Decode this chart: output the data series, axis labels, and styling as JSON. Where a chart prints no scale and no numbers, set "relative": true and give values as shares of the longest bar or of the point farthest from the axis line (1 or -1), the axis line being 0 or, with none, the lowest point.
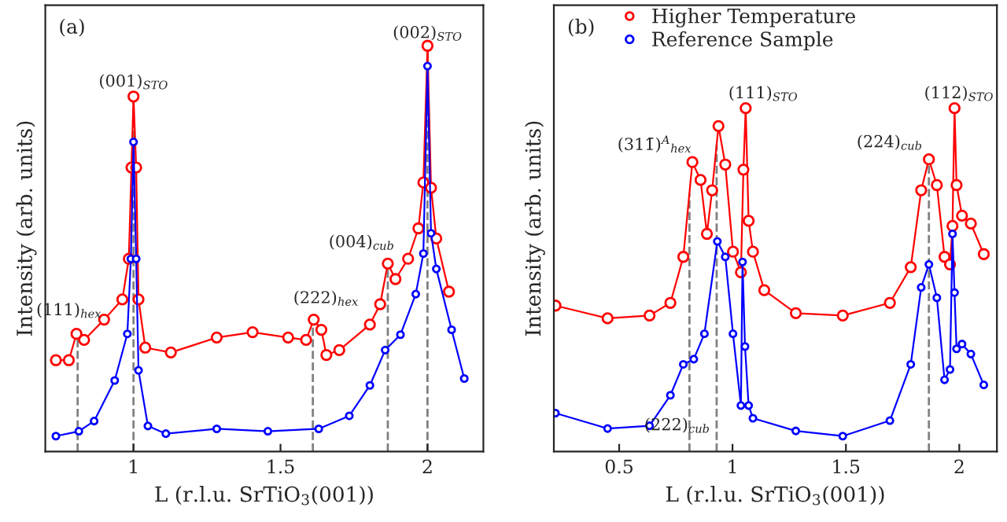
{
  "chart_data": [
    {
      "type": "line",
      "relative": true,
      "xlabel": "L (r.l.u. SrTiO$_{3}$(001))",
      "ylabel": "Intensity (arb. units)",
      "xlim": [
        0.7,
        2.19
      ],
      "xticks": [
        1,
        1.5,
        2
      ],
      "tick_labels": "x",
      "grid": false,
      "legend": false,
      "marker": "circle",
      "series": [
        {
          "color": "#ff0000",
          "x": [
            0.736,
            0.78,
            0.806,
            0.832,
            0.9,
            0.962,
            0.984,
            0.993,
            1.0,
            1.009,
            1.017,
            1.04,
            1.127,
            1.283,
            1.405,
            1.526,
            1.587,
            1.613,
            1.639,
            1.656,
            1.7,
            1.804,
            1.839,
            1.865,
            1.891,
            1.934,
            1.969,
            1.986,
            2.0,
            2.012,
            2.03,
            2.073
          ],
          "values": [
            0.225,
            0.225,
            0.29,
            0.275,
            0.325,
            0.375,
            0.475,
            0.7,
            0.875,
            0.7,
            0.375,
            0.256,
            0.244,
            0.281,
            0.294,
            0.281,
            0.275,
            0.325,
            0.3,
            0.238,
            0.25,
            0.313,
            0.363,
            0.463,
            0.425,
            0.475,
            0.55,
            0.663,
            1.0,
            0.65,
            0.525,
            0.394
          ]
        },
        {
          "color": "#0000ff",
          "x": [
            0.736,
            0.814,
            0.866,
            0.936,
            0.979,
            0.991,
            1.0,
            1.009,
            1.017,
            1.049,
            1.11,
            1.283,
            1.457,
            1.63,
            1.734,
            1.804,
            1.856,
            1.908,
            1.96,
            1.986,
            2.0,
            2.012,
            2.03,
            2.082,
            2.125
          ],
          "values": [
            0.038,
            0.05,
            0.075,
            0.175,
            0.29,
            0.475,
            0.763,
            0.475,
            0.2,
            0.063,
            0.044,
            0.056,
            0.05,
            0.056,
            0.088,
            0.163,
            0.25,
            0.288,
            0.388,
            0.488,
            0.95,
            0.538,
            0.45,
            0.3,
            0.18
          ]
        }
      ],
      "ref_lines": [
        {
          "axis": "x",
          "value": 0.81,
          "color": "#808080",
          "line_style": "dashed"
        },
        {
          "axis": "x",
          "value": 1.0,
          "color": "#808080",
          "line_style": "dashed"
        },
        {
          "axis": "x",
          "value": 1.61,
          "color": "#808080",
          "line_style": "dashed"
        },
        {
          "axis": "x",
          "value": 1.865,
          "color": "#808080",
          "line_style": "dashed"
        },
        {
          "axis": "x",
          "value": 2.0,
          "color": "#808080",
          "line_style": "dashed"
        }
      ],
      "annotations": [
        "(a)",
        {
          "text": "(001)$_{STO}$",
          "x": 1.0,
          "y": 0.875
        },
        {
          "text": "(002)$_{STO}$",
          "x": 2.0,
          "y": 1.0
        },
        {
          "text": "(111)$_{hex}$",
          "x": 0.81,
          "y": 0.29
        },
        {
          "text": "(222)$_{hex}$",
          "x": 1.61,
          "y": 0.325
        },
        {
          "text": "(004)$_{cub}$",
          "x": 1.865,
          "y": 0.463
        }
      ]
    },
    {
      "type": "line",
      "relative": true,
      "xlabel": "L (r.l.u. SrTiO$_{3}$(001))",
      "ylabel": "Intensity (arb. units)",
      "xlim": [
        0.212,
        2.166
      ],
      "xticks": [
        0.5,
        1,
        1.5,
        2
      ],
      "tick_labels": "x",
      "grid": false,
      "legend": "top left",
      "marker": "circle",
      "series": [
        {
          "name": "Higher Temperature",
          "color": "#ff0000",
          "x": [
            0.219,
            0.449,
            0.634,
            0.726,
            0.783,
            0.823,
            0.859,
            0.887,
            0.91,
            0.938,
            0.968,
            1.002,
            1.037,
            1.048,
            1.058,
            1.071,
            1.09,
            1.14,
            1.279,
            1.486,
            1.694,
            1.786,
            1.832,
            1.866,
            1.901,
            1.935,
            1.959,
            1.97,
            1.979,
            1.988,
            2.012,
            2.051,
            2.108
          ],
          "values": [
            0.425,
            0.388,
            0.396,
            0.433,
            0.567,
            0.843,
            0.791,
            0.634,
            0.761,
            0.948,
            0.836,
            0.582,
            0.522,
            0.821,
            1.0,
            0.672,
            0.582,
            0.47,
            0.403,
            0.396,
            0.433,
            0.537,
            0.761,
            0.851,
            0.776,
            0.567,
            0.545,
            0.657,
            1.0,
            0.776,
            0.687,
            0.664,
            0.575
          ]
        },
        {
          "name": "Reference Sample",
          "color": "#0000ff",
          "x": [
            0.219,
            0.449,
            0.634,
            0.726,
            0.783,
            0.829,
            0.876,
            0.933,
            0.968,
            1.002,
            1.037,
            1.044,
            1.055,
            1.071,
            1.09,
            1.279,
            1.486,
            1.694,
            1.786,
            1.832,
            1.866,
            1.901,
            1.935,
            1.959,
            1.97,
            1.979,
            1.988,
            2.012,
            2.051,
            2.108
          ],
          "values": [
            0.112,
            0.067,
            0.075,
            0.164,
            0.254,
            0.269,
            0.343,
            0.612,
            0.567,
            0.343,
            0.134,
            0.552,
            0.306,
            0.134,
            0.097,
            0.06,
            0.045,
            0.09,
            0.254,
            0.478,
            0.545,
            0.448,
            0.209,
            0.239,
            0.634,
            0.463,
            0.299,
            0.313,
            0.284,
            0.194
          ]
        }
      ],
      "ref_lines": [
        {
          "axis": "x",
          "value": 0.81,
          "color": "#808080",
          "line_style": "dashed"
        },
        {
          "axis": "x",
          "value": 0.93,
          "color": "#808080",
          "line_style": "dashed"
        },
        {
          "axis": "x",
          "value": 1.866,
          "color": "#808080",
          "line_style": "dashed"
        }
      ],
      "annotations": [
        "(b)",
        {
          "text": "(311̄)$^{A}$$_{hex}$",
          "x": 0.81,
          "y": 0.843
        },
        {
          "text": "(111)$_{STO}$",
          "x": 1.058,
          "y": 1.0
        },
        {
          "text": "(224)$_{cub}$",
          "x": 1.866,
          "y": 0.851
        },
        {
          "text": "(112)$_{STO}$",
          "x": 1.979,
          "y": 1.0
        },
        {
          "text": "(222)$_{cub}$",
          "x": 0.93,
          "y": 0.05
        }
      ]
    }
  ]
}
